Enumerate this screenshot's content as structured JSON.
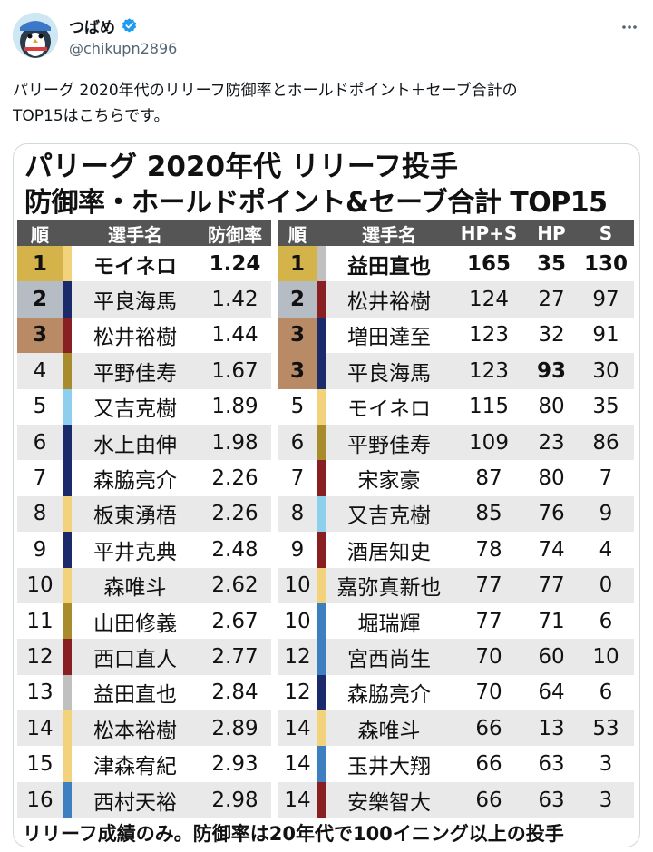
{
  "tweet": {
    "display_name": "つばめ",
    "handle": "@chikupn2896",
    "text_line1": "パリーグ 2020年代のリリーフ防御率とホールドポイント＋セーブ合計の",
    "text_line2": "TOP15はこちらです。",
    "colors": {
      "verified": "#1d9bf0",
      "muted": "#536471"
    }
  },
  "image": {
    "title_line1": "パリーグ 2020年代  リリーフ投手",
    "title_line2": "防御率・ホールドポイント&セーブ合計  TOP15",
    "footnote": "リリーフ成績のみ。防御率は20年代で100イニング以上の投手",
    "left_headers": {
      "rank": "順",
      "name": "選手名",
      "era": "防御率"
    },
    "right_headers": {
      "rank": "順",
      "name": "選手名",
      "hps": "HP+S",
      "hp": "HP",
      "s": "S"
    },
    "left_rows": [
      {
        "rank": "1",
        "name": "モイネロ",
        "era": "1.24",
        "medal": "gold",
        "team_color": "#f2d27a"
      },
      {
        "rank": "2",
        "name": "平良海馬",
        "era": "1.42",
        "medal": "silver",
        "team_color": "#1b2a6b"
      },
      {
        "rank": "3",
        "name": "松井裕樹",
        "era": "1.44",
        "medal": "bronze",
        "team_color": "#8a1f23"
      },
      {
        "rank": "4",
        "name": "平野佳寿",
        "era": "1.67",
        "medal": "",
        "team_color": "#a88b2a"
      },
      {
        "rank": "5",
        "name": "又吉克樹",
        "era": "1.89",
        "medal": "",
        "team_color": "#8fcfee"
      },
      {
        "rank": "6",
        "name": "水上由伸",
        "era": "1.98",
        "medal": "",
        "team_color": "#1b2a6b"
      },
      {
        "rank": "7",
        "name": "森脇亮介",
        "era": "2.26",
        "medal": "",
        "team_color": "#1b2a6b"
      },
      {
        "rank": "8",
        "name": "板東湧梧",
        "era": "2.26",
        "medal": "",
        "team_color": "#f2d27a"
      },
      {
        "rank": "9",
        "name": "平井克典",
        "era": "2.48",
        "medal": "",
        "team_color": "#1b2a6b"
      },
      {
        "rank": "10",
        "name": "森唯斗",
        "era": "2.62",
        "medal": "",
        "team_color": "#f2d27a"
      },
      {
        "rank": "11",
        "name": "山田修義",
        "era": "2.67",
        "medal": "",
        "team_color": "#a88b2a"
      },
      {
        "rank": "12",
        "name": "西口直人",
        "era": "2.77",
        "medal": "",
        "team_color": "#8a1f23"
      },
      {
        "rank": "13",
        "name": "益田直也",
        "era": "2.84",
        "medal": "",
        "team_color": "#c0c0c0"
      },
      {
        "rank": "14",
        "name": "松本裕樹",
        "era": "2.89",
        "medal": "",
        "team_color": "#f2d27a"
      },
      {
        "rank": "15",
        "name": "津森宥紀",
        "era": "2.93",
        "medal": "",
        "team_color": "#f2d27a"
      },
      {
        "rank": "16",
        "name": "西村天裕",
        "era": "2.98",
        "medal": "",
        "team_color": "#3d7fc1"
      }
    ],
    "right_rows": [
      {
        "rank": "1",
        "name": "益田直也",
        "hps": "165",
        "hp": "35",
        "s": "130",
        "medal": "gold",
        "team_color": "#c0c0c0",
        "hp_bold": false
      },
      {
        "rank": "2",
        "name": "松井裕樹",
        "hps": "124",
        "hp": "27",
        "s": "97",
        "medal": "silver",
        "team_color": "#8a1f23",
        "hp_bold": false
      },
      {
        "rank": "3",
        "name": "増田達至",
        "hps": "123",
        "hp": "32",
        "s": "91",
        "medal": "bronze",
        "team_color": "#1b2a6b",
        "hp_bold": false
      },
      {
        "rank": "3",
        "name": "平良海馬",
        "hps": "123",
        "hp": "93",
        "s": "30",
        "medal": "bronze",
        "team_color": "#1b2a6b",
        "hp_bold": true
      },
      {
        "rank": "5",
        "name": "モイネロ",
        "hps": "115",
        "hp": "80",
        "s": "35",
        "medal": "",
        "team_color": "#f2d27a",
        "hp_bold": false
      },
      {
        "rank": "6",
        "name": "平野佳寿",
        "hps": "109",
        "hp": "23",
        "s": "86",
        "medal": "",
        "team_color": "#a88b2a",
        "hp_bold": false
      },
      {
        "rank": "7",
        "name": "宋家豪",
        "hps": "87",
        "hp": "80",
        "s": "7",
        "medal": "",
        "team_color": "#8a1f23",
        "hp_bold": false
      },
      {
        "rank": "8",
        "name": "又吉克樹",
        "hps": "85",
        "hp": "76",
        "s": "9",
        "medal": "",
        "team_color": "#8fcfee",
        "hp_bold": false
      },
      {
        "rank": "9",
        "name": "酒居知史",
        "hps": "78",
        "hp": "74",
        "s": "4",
        "medal": "",
        "team_color": "#8a1f23",
        "hp_bold": false
      },
      {
        "rank": "10",
        "name": "嘉弥真新也",
        "hps": "77",
        "hp": "77",
        "s": "0",
        "medal": "",
        "team_color": "#f2d27a",
        "hp_bold": false
      },
      {
        "rank": "10",
        "name": "堀瑞輝",
        "hps": "77",
        "hp": "71",
        "s": "6",
        "medal": "",
        "team_color": "#3d7fc1",
        "hp_bold": false
      },
      {
        "rank": "12",
        "name": "宮西尚生",
        "hps": "70",
        "hp": "60",
        "s": "10",
        "medal": "",
        "team_color": "#3d7fc1",
        "hp_bold": false
      },
      {
        "rank": "12",
        "name": "森脇亮介",
        "hps": "70",
        "hp": "64",
        "s": "6",
        "medal": "",
        "team_color": "#1b2a6b",
        "hp_bold": false
      },
      {
        "rank": "14",
        "name": "森唯斗",
        "hps": "66",
        "hp": "13",
        "s": "53",
        "medal": "",
        "team_color": "#f2d27a",
        "hp_bold": false
      },
      {
        "rank": "14",
        "name": "玉井大翔",
        "hps": "66",
        "hp": "63",
        "s": "3",
        "medal": "",
        "team_color": "#3d7fc1",
        "hp_bold": false
      },
      {
        "rank": "14",
        "name": "安樂智大",
        "hps": "66",
        "hp": "63",
        "s": "3",
        "medal": "",
        "team_color": "#8a1f23",
        "hp_bold": false
      }
    ]
  }
}
